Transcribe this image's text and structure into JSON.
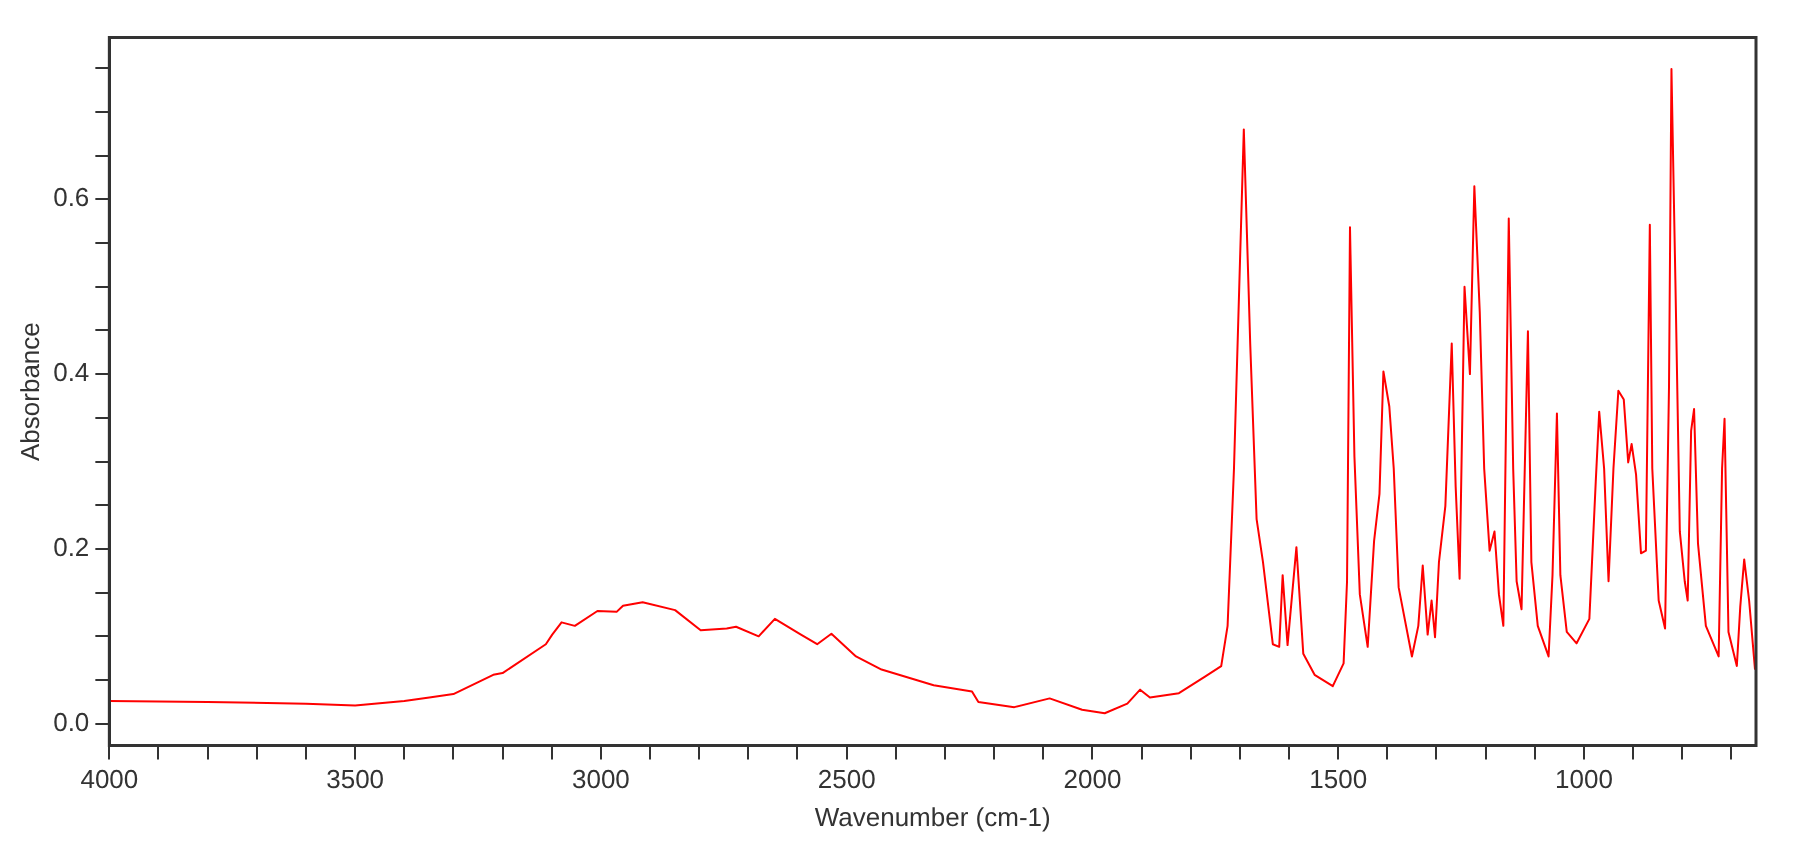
{
  "chart_data": {
    "type": "line",
    "xlabel": "Wavenumber (cm-1)",
    "ylabel": "Absorbance",
    "xlim": [
      4000,
      650
    ],
    "ylim": [
      -0.025,
      0.785
    ],
    "xticks": [
      4000,
      {
        "value": 3900,
        "label": null
      },
      {
        "value": 3800,
        "label": null
      },
      {
        "value": 3700,
        "label": null
      },
      {
        "value": 3600,
        "label": null
      },
      3500,
      {
        "value": 3400,
        "label": null
      },
      {
        "value": 3300,
        "label": null
      },
      {
        "value": 3200,
        "label": null
      },
      {
        "value": 3100,
        "label": null
      },
      3000,
      {
        "value": 2900,
        "label": null
      },
      {
        "value": 2800,
        "label": null
      },
      {
        "value": 2700,
        "label": null
      },
      {
        "value": 2600,
        "label": null
      },
      2500,
      {
        "value": 2400,
        "label": null
      },
      {
        "value": 2300,
        "label": null
      },
      {
        "value": 2200,
        "label": null
      },
      {
        "value": 2100,
        "label": null
      },
      2000,
      {
        "value": 1900,
        "label": null
      },
      {
        "value": 1800,
        "label": null
      },
      {
        "value": 1700,
        "label": null
      },
      {
        "value": 1600,
        "label": null
      },
      1500,
      {
        "value": 1400,
        "label": null
      },
      {
        "value": 1300,
        "label": null
      },
      {
        "value": 1200,
        "label": null
      },
      {
        "value": 1100,
        "label": null
      },
      1000,
      {
        "value": 900,
        "label": null
      },
      {
        "value": 800,
        "label": null
      },
      {
        "value": 700,
        "label": null
      }
    ],
    "yticks": [
      {
        "value": 0,
        "label": "0.0"
      },
      {
        "value": 0.05,
        "label": null
      },
      {
        "value": 0.1,
        "label": null
      },
      {
        "value": 0.15,
        "label": null
      },
      {
        "value": 0.2,
        "label": "0.2"
      },
      {
        "value": 0.25,
        "label": null
      },
      {
        "value": 0.3,
        "label": null
      },
      {
        "value": 0.35,
        "label": null
      },
      {
        "value": 0.4,
        "label": "0.4"
      },
      {
        "value": 0.45,
        "label": null
      },
      {
        "value": 0.5,
        "label": null
      },
      {
        "value": 0.55,
        "label": null
      },
      {
        "value": 0.6,
        "label": "0.6"
      },
      {
        "value": 0.65,
        "label": null
      },
      {
        "value": 0.7,
        "label": null
      },
      {
        "value": 0.75,
        "label": null
      }
    ],
    "grid": false,
    "legend": false,
    "marker": "none",
    "line_style": "solid",
    "series": [
      {
        "color": "#ff0000",
        "x": [
          4000,
          3800,
          3600,
          3500,
          3400,
          3349,
          3300,
          3219,
          3200,
          3112,
          3099,
          3080,
          3053,
          3007,
          2968,
          2955,
          2915,
          2849,
          2797,
          2744,
          2725,
          2679,
          2646,
          2593,
          2560,
          2531,
          2481,
          2429,
          2323,
          2245,
          2232,
          2159,
          2087,
          2021,
          1975,
          1929,
          1903,
          1883,
          1824,
          1771,
          1738,
          1725,
          1712,
          1692,
          1679,
          1666,
          1653,
          1633,
          1620,
          1613,
          1603,
          1585,
          1571,
          1548,
          1511,
          1489,
          1482,
          1476,
          1467,
          1456,
          1440,
          1427,
          1416,
          1408,
          1396,
          1387,
          1377,
          1350,
          1337,
          1328,
          1318,
          1310,
          1303,
          1295,
          1282,
          1269,
          1261,
          1253,
          1243,
          1232,
          1223,
          1212,
          1203,
          1192,
          1182,
          1173,
          1164,
          1153,
          1144,
          1137,
          1127,
          1114,
          1107,
          1094,
          1072,
          1064,
          1055,
          1048,
          1035,
          1015,
          989,
          976,
          969,
          959,
          950,
          940,
          930,
          919,
          910,
          903,
          894,
          884,
          874,
          866,
          861,
          848,
          835,
          827,
          822,
          814,
          805,
          795,
          789,
          782,
          776,
          768,
          752,
          726,
          719,
          714,
          706,
          689,
          682,
          674,
          664,
          652
        ],
        "values": [
          0.026,
          0.025,
          0.023,
          0.021,
          0.026,
          0.03,
          0.034,
          0.056,
          0.058,
          0.091,
          0.102,
          0.116,
          0.112,
          0.129,
          0.128,
          0.135,
          0.139,
          0.13,
          0.107,
          0.109,
          0.111,
          0.1,
          0.12,
          0.102,
          0.091,
          0.103,
          0.077,
          0.062,
          0.044,
          0.037,
          0.025,
          0.019,
          0.029,
          0.016,
          0.012,
          0.023,
          0.039,
          0.03,
          0.035,
          0.054,
          0.066,
          0.112,
          0.292,
          0.68,
          0.435,
          0.234,
          0.185,
          0.091,
          0.088,
          0.17,
          0.09,
          0.202,
          0.08,
          0.056,
          0.043,
          0.069,
          0.163,
          0.568,
          0.306,
          0.148,
          0.088,
          0.209,
          0.263,
          0.403,
          0.363,
          0.292,
          0.156,
          0.077,
          0.112,
          0.181,
          0.102,
          0.141,
          0.099,
          0.185,
          0.249,
          0.435,
          0.271,
          0.166,
          0.5,
          0.4,
          0.615,
          0.471,
          0.292,
          0.198,
          0.22,
          0.148,
          0.112,
          0.578,
          0.292,
          0.163,
          0.131,
          0.449,
          0.185,
          0.112,
          0.077,
          0.17,
          0.355,
          0.17,
          0.105,
          0.092,
          0.12,
          0.277,
          0.357,
          0.292,
          0.163,
          0.292,
          0.381,
          0.371,
          0.299,
          0.32,
          0.285,
          0.195,
          0.198,
          0.571,
          0.292,
          0.141,
          0.109,
          0.385,
          0.749,
          0.507,
          0.22,
          0.163,
          0.141,
          0.335,
          0.36,
          0.206,
          0.112,
          0.077,
          0.292,
          0.349,
          0.105,
          0.066,
          0.134,
          0.188,
          0.141,
          0.062
        ]
      }
    ]
  }
}
